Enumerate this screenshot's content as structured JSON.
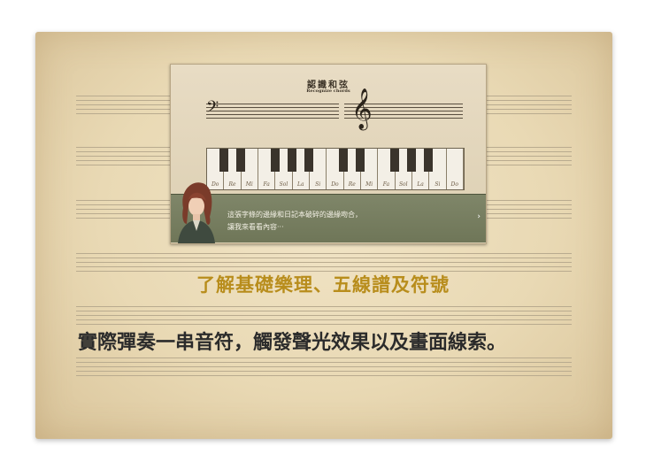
{
  "game": {
    "title": "認識和弦",
    "subtitle": "Recognize chords",
    "keys": [
      "Do",
      "Re",
      "Mi",
      "Fa",
      "Sol",
      "La",
      "Si",
      "Do",
      "Re",
      "Mi",
      "Fa",
      "Sol",
      "La",
      "Si",
      "Do"
    ],
    "dialog_line1": "這張字條的邊緣和日記本破碎的邊緣吻合，",
    "dialog_line2": "讓我來看看內容···",
    "next_glyph": "›"
  },
  "headline": "了解基礎樂理、五線譜及符號",
  "description": "實際彈奏一串音符，觸發聲光效果以及畫面線索。",
  "colors": {
    "headline": "#b88d1c",
    "dialog": "#7a8163",
    "parchment": "#ecdcb8"
  }
}
